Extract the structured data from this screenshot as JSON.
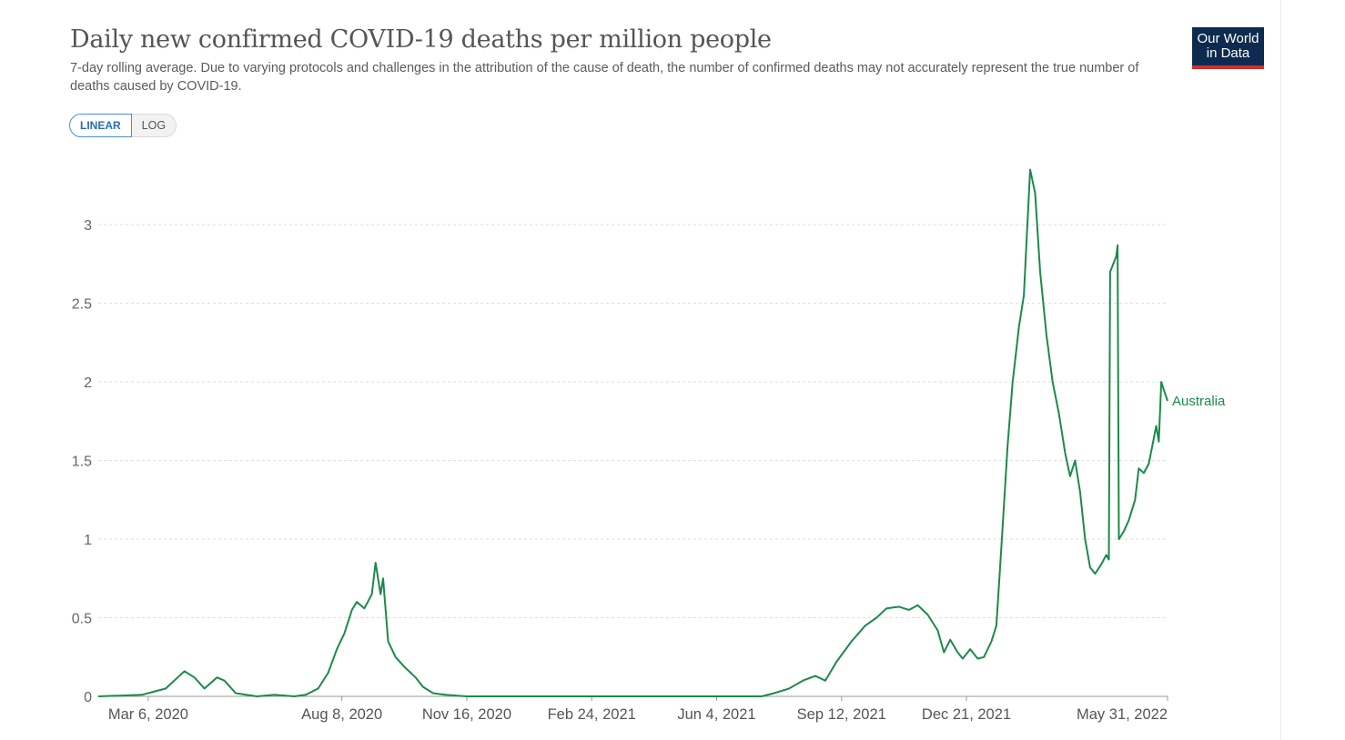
{
  "header": {
    "title": "Daily new confirmed COVID-19 deaths per million people",
    "subtitle": "7-day rolling average. Due to varying protocols and challenges in the attribution of the cause of death, the number of confirmed deaths may not accurately represent the true number of deaths caused by COVID-19."
  },
  "logo": {
    "line1": "Our World",
    "line2": "in Data"
  },
  "scale_toggle": {
    "linear_label": "LINEAR",
    "log_label": "LOG",
    "selected": "LINEAR"
  },
  "colors": {
    "series": "#1c8a4b",
    "grid": "#dcdcdc",
    "logo_bg": "#0d2b4e",
    "logo_accent": "#d0312d",
    "toggle_active": "#4a90d9"
  },
  "chart_data": {
    "type": "line",
    "title": "Daily new confirmed COVID-19 deaths per million people",
    "xlabel": "",
    "ylabel": "",
    "ylim": [
      0,
      3.4
    ],
    "xlim": [
      "2020-01-26",
      "2022-05-31"
    ],
    "y_ticks": [
      0,
      0.5,
      1,
      1.5,
      2,
      2.5,
      3
    ],
    "y_tick_labels": [
      "0",
      "0.5",
      "1",
      "1.5",
      "2",
      "2.5",
      "3"
    ],
    "x_ticks": [
      "2020-03-06",
      "2020-08-08",
      "2020-11-16",
      "2021-02-24",
      "2021-06-04",
      "2021-09-12",
      "2021-12-21",
      "2022-05-31"
    ],
    "x_tick_labels": [
      "Mar 6, 2020",
      "Aug 8, 2020",
      "Nov 16, 2020",
      "Feb 24, 2021",
      "Jun 4, 2021",
      "Sep 12, 2021",
      "Dec 21, 2021",
      "May 31, 2022"
    ],
    "grid": "horizontal dashed",
    "legend": "end-of-line label",
    "series": [
      {
        "name": "Australia",
        "points": [
          [
            "2020-01-26",
            0
          ],
          [
            "2020-03-01",
            0.01
          ],
          [
            "2020-03-20",
            0.05
          ],
          [
            "2020-04-04",
            0.16
          ],
          [
            "2020-04-12",
            0.12
          ],
          [
            "2020-04-20",
            0.05
          ],
          [
            "2020-04-30",
            0.12
          ],
          [
            "2020-05-06",
            0.1
          ],
          [
            "2020-05-15",
            0.02
          ],
          [
            "2020-06-01",
            0
          ],
          [
            "2020-06-15",
            0.01
          ],
          [
            "2020-07-01",
            0
          ],
          [
            "2020-07-10",
            0.01
          ],
          [
            "2020-07-20",
            0.05
          ],
          [
            "2020-07-28",
            0.15
          ],
          [
            "2020-08-04",
            0.3
          ],
          [
            "2020-08-10",
            0.4
          ],
          [
            "2020-08-16",
            0.55
          ],
          [
            "2020-08-20",
            0.6
          ],
          [
            "2020-08-26",
            0.56
          ],
          [
            "2020-09-01",
            0.65
          ],
          [
            "2020-09-04",
            0.85
          ],
          [
            "2020-09-08",
            0.65
          ],
          [
            "2020-09-10",
            0.75
          ],
          [
            "2020-09-14",
            0.35
          ],
          [
            "2020-09-20",
            0.25
          ],
          [
            "2020-09-28",
            0.18
          ],
          [
            "2020-10-06",
            0.12
          ],
          [
            "2020-10-12",
            0.06
          ],
          [
            "2020-10-20",
            0.02
          ],
          [
            "2020-10-30",
            0.01
          ],
          [
            "2020-11-16",
            0
          ],
          [
            "2021-02-24",
            0
          ],
          [
            "2021-06-04",
            0
          ],
          [
            "2021-07-10",
            0
          ],
          [
            "2021-07-20",
            0.02
          ],
          [
            "2021-08-01",
            0.05
          ],
          [
            "2021-08-12",
            0.1
          ],
          [
            "2021-08-22",
            0.13
          ],
          [
            "2021-08-30",
            0.1
          ],
          [
            "2021-09-08",
            0.22
          ],
          [
            "2021-09-20",
            0.35
          ],
          [
            "2021-10-01",
            0.45
          ],
          [
            "2021-10-10",
            0.5
          ],
          [
            "2021-10-18",
            0.56
          ],
          [
            "2021-10-28",
            0.57
          ],
          [
            "2021-11-05",
            0.55
          ],
          [
            "2021-11-12",
            0.58
          ],
          [
            "2021-11-20",
            0.52
          ],
          [
            "2021-11-28",
            0.42
          ],
          [
            "2021-12-03",
            0.28
          ],
          [
            "2021-12-08",
            0.36
          ],
          [
            "2021-12-14",
            0.28
          ],
          [
            "2021-12-18",
            0.24
          ],
          [
            "2021-12-24",
            0.3
          ],
          [
            "2021-12-30",
            0.24
          ],
          [
            "2022-01-04",
            0.25
          ],
          [
            "2022-01-10",
            0.35
          ],
          [
            "2022-01-14",
            0.45
          ],
          [
            "2022-01-18",
            0.95
          ],
          [
            "2022-01-23",
            1.6
          ],
          [
            "2022-01-27",
            2.0
          ],
          [
            "2022-02-01",
            2.35
          ],
          [
            "2022-02-05",
            2.55
          ],
          [
            "2022-02-10",
            3.35
          ],
          [
            "2022-02-14",
            3.2
          ],
          [
            "2022-02-18",
            2.7
          ],
          [
            "2022-02-23",
            2.3
          ],
          [
            "2022-02-28",
            2.0
          ],
          [
            "2022-03-05",
            1.8
          ],
          [
            "2022-03-10",
            1.55
          ],
          [
            "2022-03-14",
            1.4
          ],
          [
            "2022-03-18",
            1.5
          ],
          [
            "2022-03-22",
            1.3
          ],
          [
            "2022-03-26",
            1.0
          ],
          [
            "2022-03-30",
            0.82
          ],
          [
            "2022-04-03",
            0.78
          ],
          [
            "2022-04-08",
            0.84
          ],
          [
            "2022-04-12",
            0.9
          ],
          [
            "2022-04-14",
            0.87
          ],
          [
            "2022-04-15",
            2.7
          ],
          [
            "2022-04-20",
            2.8
          ],
          [
            "2022-04-21",
            2.87
          ],
          [
            "2022-04-22",
            1.0
          ],
          [
            "2022-04-26",
            1.05
          ],
          [
            "2022-04-30",
            1.12
          ],
          [
            "2022-05-05",
            1.25
          ],
          [
            "2022-05-08",
            1.45
          ],
          [
            "2022-05-12",
            1.42
          ],
          [
            "2022-05-16",
            1.48
          ],
          [
            "2022-05-19",
            1.6
          ],
          [
            "2022-05-22",
            1.72
          ],
          [
            "2022-05-24",
            1.62
          ],
          [
            "2022-05-26",
            2.0
          ],
          [
            "2022-05-28",
            1.95
          ],
          [
            "2022-05-31",
            1.88
          ]
        ]
      }
    ]
  }
}
